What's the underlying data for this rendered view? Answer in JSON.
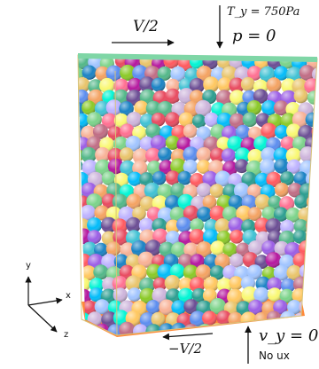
{
  "labels": {
    "top_velocity": "V/2",
    "bottom_velocity": "−V/2",
    "top_traction": "T_y = 750Pa",
    "top_pressure": "p = 0",
    "bottom_velocity_y": "v_y = 0",
    "bottom_no_flux": "No ux"
  },
  "axes": {
    "x": "x",
    "y": "y",
    "z": "z"
  },
  "colors": {
    "top_plate": "#7fd6a6",
    "bottom_plate": "#ff8a3a",
    "box_edge": "#d8c37a"
  }
}
